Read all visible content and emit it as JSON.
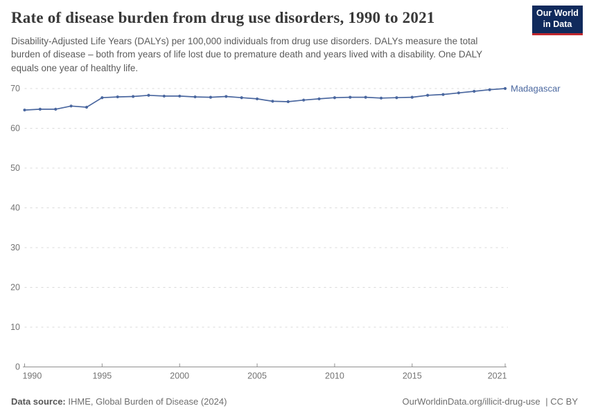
{
  "header": {
    "title": "Rate of disease burden from drug use disorders, 1990 to 2021",
    "subtitle": "Disability-Adjusted Life Years (DALYs) per 100,000 individuals from drug use disorders. DALYs measure the total burden of disease – both from years of life lost due to premature death and years lived with a disability. One DALY equals one year of healthy life.",
    "logo": {
      "line1": "Our World",
      "line2": "in Data"
    }
  },
  "chart_data": {
    "type": "line",
    "title": "Rate of disease burden from drug use disorders, 1990 to 2021",
    "xlabel": "",
    "ylabel": "DALYs per 100,000 individuals",
    "x": [
      1990,
      1991,
      1992,
      1993,
      1994,
      1995,
      1996,
      1997,
      1998,
      1999,
      2000,
      2001,
      2002,
      2003,
      2004,
      2005,
      2006,
      2007,
      2008,
      2009,
      2010,
      2011,
      2012,
      2013,
      2014,
      2015,
      2016,
      2017,
      2018,
      2019,
      2020,
      2021
    ],
    "series": [
      {
        "name": "Madagascar",
        "color": "#4a679f",
        "values": [
          64.6,
          64.8,
          64.8,
          65.6,
          65.3,
          67.7,
          67.9,
          68.0,
          68.3,
          68.1,
          68.1,
          67.9,
          67.8,
          68.0,
          67.7,
          67.4,
          66.8,
          66.7,
          67.1,
          67.4,
          67.7,
          67.8,
          67.8,
          67.6,
          67.7,
          67.8,
          68.3,
          68.5,
          68.9,
          69.3,
          69.7,
          70.0
        ]
      }
    ],
    "xlim": [
      1990,
      2021
    ],
    "ylim": [
      0,
      70
    ],
    "x_ticks": [
      1990,
      1995,
      2000,
      2005,
      2010,
      2015,
      2021
    ],
    "y_ticks": [
      0,
      10,
      20,
      30,
      40,
      50,
      60,
      70
    ],
    "grid": "horizontal-dashed",
    "markers": true,
    "legend_position": "right-of-line",
    "entity_label": "Madagascar"
  },
  "footer": {
    "source_label": "Data source:",
    "source_value": "IHME, Global Burden of Disease (2024)",
    "credit_url": "OurWorldinData.org/illicit-drug-use",
    "credit_license": "| CC BY"
  },
  "colors": {
    "line": "#4a679f",
    "grid": "#d9d9d9",
    "axis": "#8f8f8f",
    "tick_text": "#737373",
    "logo_bg": "#102a5c",
    "logo_stripe": "#c0272d"
  }
}
